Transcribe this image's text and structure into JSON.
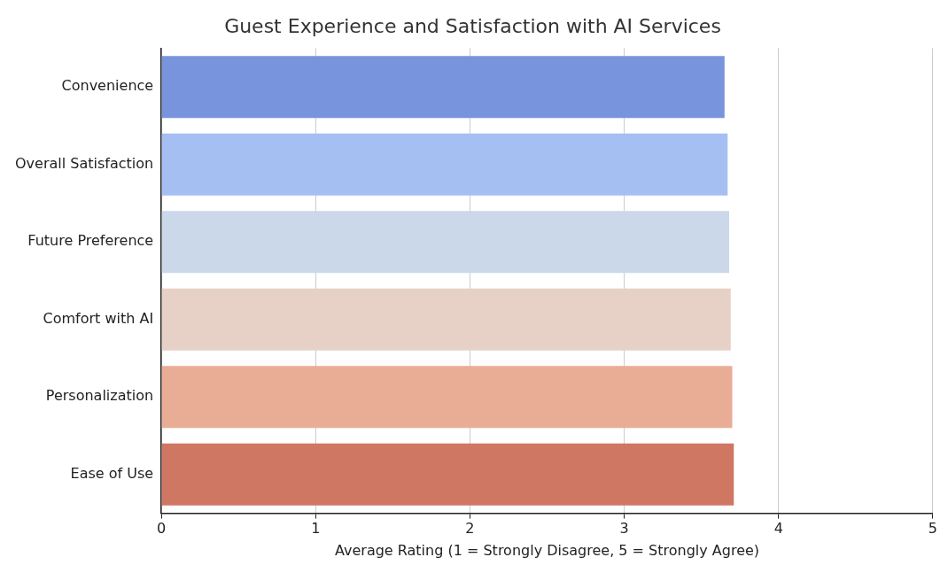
{
  "chart_data": {
    "type": "bar",
    "orientation": "horizontal",
    "title": "Guest Experience and Satisfaction with AI Services",
    "xlabel": "Average Rating (1 = Strongly Disagree, 5 = Strongly Agree)",
    "categories": [
      "Convenience",
      "Overall Satisfaction",
      "Future Preference",
      "Comfort with AI",
      "Personalization",
      "Ease of Use"
    ],
    "values": [
      3.65,
      3.67,
      3.68,
      3.69,
      3.7,
      3.71
    ],
    "colors": [
      "#7894dc",
      "#a5bff2",
      "#cbd8ea",
      "#e7d1c6",
      "#e9ad95",
      "#cf7763"
    ],
    "xlim": [
      0,
      5
    ],
    "xticks": [
      0,
      1,
      2,
      3,
      4,
      5
    ],
    "grid": "x",
    "legend": false
  }
}
